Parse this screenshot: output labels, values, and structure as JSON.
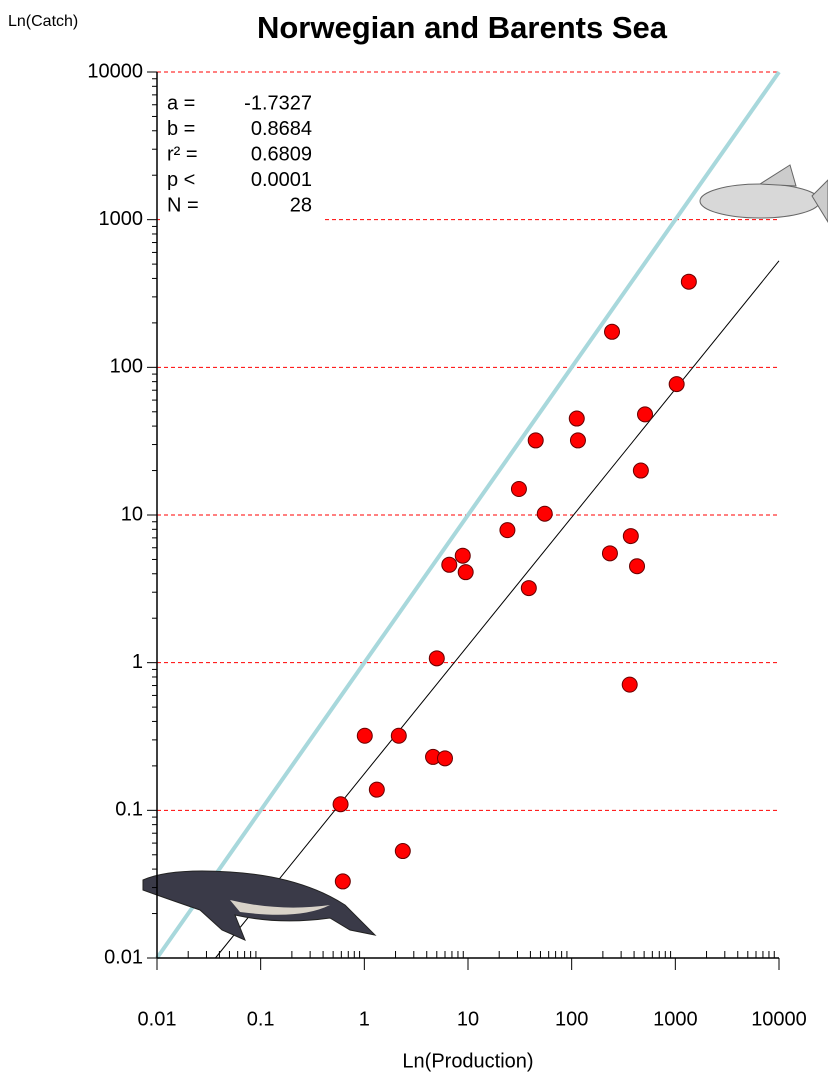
{
  "chart_data": {
    "type": "scatter",
    "title": "Norwegian and Barents Sea",
    "y_label": "Ln(Catch)",
    "x_label": "Ln(Production)",
    "log_x": true,
    "log_y": true,
    "xlim": [
      0.01,
      10000
    ],
    "ylim": [
      0.01,
      10000
    ],
    "xticks": [
      0.01,
      0.1,
      1,
      10,
      100,
      1000,
      10000
    ],
    "yticks": [
      0.01,
      0.1,
      1,
      10,
      100,
      1000,
      10000
    ],
    "grid": true,
    "grid_color": "#ff0000",
    "color": "#ff0000",
    "identity_line_color": "#a8d8dc",
    "x": [
      1350,
      245,
      1030,
      510,
      112,
      45,
      115,
      465,
      31,
      55,
      24,
      372,
      234,
      8.9,
      6.6,
      9.5,
      427,
      38.6,
      5.0,
      363,
      1.01,
      2.15,
      4.6,
      6.0,
      0.59,
      1.32,
      2.35,
      0.62
    ],
    "values": [
      380,
      174,
      77,
      48,
      45,
      32,
      32,
      20,
      15,
      10.2,
      7.9,
      7.2,
      5.5,
      5.3,
      4.6,
      4.1,
      4.5,
      3.2,
      1.07,
      0.71,
      0.32,
      0.32,
      0.23,
      0.225,
      0.11,
      0.138,
      0.053,
      0.033
    ],
    "stats": [
      {
        "label": "a =",
        "value": -1.7327
      },
      {
        "label": "b =",
        "value": 0.8684
      },
      {
        "label": "r² =",
        "value": 0.6809
      },
      {
        "label": "p <",
        "value": 0.0001
      },
      {
        "label": "N =",
        "value": 28
      }
    ]
  }
}
